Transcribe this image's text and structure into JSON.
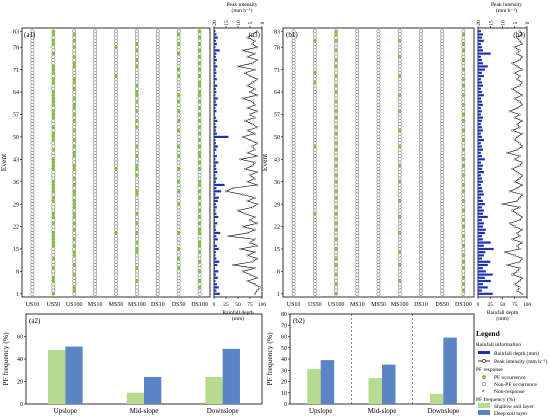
{
  "colors": {
    "pf_occurrence": "#8bc34a",
    "shallow": "#b7dc90",
    "deep": "#5b84c4",
    "rainfall": "#1c2fb5",
    "frame": "#000000",
    "circle": "#555555"
  },
  "chart_data": [
    {
      "type": "scatter",
      "panel": "(a1)",
      "ylabel": "Event",
      "categories": [
        "US10",
        "US50",
        "US100",
        "MS10",
        "MS50",
        "MS100",
        "DS10",
        "DS50",
        "DS100"
      ],
      "yticks": [
        1,
        8,
        15,
        22,
        29,
        36,
        43,
        50,
        57,
        64,
        71,
        78,
        83
      ],
      "ylim": [
        0,
        84
      ],
      "occurrence_events": [
        [],
        [
          1,
          5,
          6,
          9,
          12,
          16,
          17,
          18,
          19,
          20,
          23,
          25,
          26,
          30,
          31,
          33,
          34,
          35,
          36,
          40,
          41,
          42,
          43,
          46,
          49,
          50,
          51,
          53,
          56,
          57,
          58,
          60,
          61,
          62,
          63,
          64,
          67,
          68,
          70,
          71,
          72,
          76,
          79,
          80,
          82,
          83
        ],
        [
          2,
          3,
          7,
          10,
          13,
          14,
          16,
          18,
          21,
          23,
          25,
          26,
          28,
          29,
          30,
          32,
          33,
          35,
          37,
          40,
          41,
          44,
          45,
          47,
          49,
          52,
          55,
          57,
          59,
          60,
          62,
          65,
          67,
          68,
          72,
          73,
          75,
          78,
          80,
          82
        ],
        [],
        [
          20,
          40,
          69,
          78
        ],
        [
          5,
          9,
          14,
          15,
          17,
          20,
          23,
          26,
          32,
          33,
          38,
          40,
          41,
          44,
          47,
          53,
          55,
          58,
          61,
          63,
          64,
          66,
          72,
          74,
          77,
          79
        ],
        [],
        [
          9,
          12,
          15,
          20,
          29,
          33,
          36,
          40,
          44,
          47,
          52,
          55,
          58,
          61,
          63,
          69,
          71,
          76,
          79,
          82
        ],
        [
          3,
          5,
          8,
          11,
          14,
          16,
          17,
          20,
          21,
          23,
          25,
          27,
          29,
          31,
          33,
          35,
          36,
          40,
          42,
          44,
          45,
          47,
          49,
          51,
          53,
          55,
          57,
          59,
          61,
          63,
          64,
          66,
          67,
          69,
          71,
          73,
          75,
          77,
          79,
          81,
          83
        ]
      ]
    },
    {
      "type": "scatter",
      "panel": "(b1)",
      "ylabel": "Event",
      "categories": [
        "US10",
        "US50",
        "US100",
        "MS10",
        "MS50",
        "MS100",
        "DS10",
        "DS50",
        "DS100"
      ],
      "yticks": [
        1,
        8,
        15,
        22,
        29,
        36,
        43,
        50,
        57,
        64,
        71,
        78,
        83
      ],
      "ylim": [
        0,
        84
      ],
      "occurrence_events": [
        [],
        [
          26,
          47,
          67,
          70,
          80
        ],
        [
          1,
          4,
          7,
          10,
          12,
          15,
          18,
          21,
          23,
          26,
          28,
          31,
          33,
          36,
          38,
          41,
          43,
          46,
          48,
          51,
          53,
          56,
          58,
          61,
          64,
          66,
          69,
          72,
          74,
          77,
          80,
          82,
          83
        ],
        [],
        [],
        [
          5,
          10,
          14,
          20,
          25,
          30,
          36,
          41,
          47,
          52,
          58,
          63,
          69,
          75,
          80
        ],
        [],
        [],
        [
          2,
          4,
          6,
          9,
          11,
          13,
          16,
          19,
          22,
          24,
          27,
          30,
          33,
          35,
          38,
          41,
          43,
          46,
          49,
          52,
          55,
          57,
          60,
          63,
          66,
          68,
          71,
          74,
          77,
          79,
          82
        ]
      ]
    },
    {
      "type": "bar+line",
      "panel": "(a3)",
      "xlabel": "Rainfall depth\n(mm)",
      "x2label": "Peak intensity\n(mm h⁻¹)",
      "xticks": [
        0,
        25,
        50,
        75,
        100
      ],
      "x2ticks": [
        20,
        15,
        10,
        5,
        0
      ],
      "xlim": [
        0,
        100
      ],
      "x2lim": [
        20,
        0
      ],
      "rainfall_depth": [
        12,
        5,
        10,
        6,
        3,
        8,
        4,
        9,
        2,
        7,
        11,
        5,
        3,
        4,
        10,
        6,
        2,
        8,
        5,
        13,
        4,
        3,
        7,
        2,
        9,
        5,
        3,
        6,
        4,
        8,
        10,
        3,
        15,
        5,
        22,
        4,
        6,
        3,
        7,
        5,
        4,
        9,
        3,
        6,
        2,
        5,
        8,
        4,
        3,
        30,
        6,
        4,
        5,
        3,
        7,
        4,
        2,
        5,
        3,
        6,
        4,
        8,
        3,
        5,
        4,
        7,
        2,
        6,
        3,
        5,
        4,
        7,
        3,
        6,
        4,
        5,
        12,
        3,
        6,
        4,
        8,
        5,
        3
      ],
      "peak_intensity": [
        3,
        2,
        1,
        3,
        6,
        2,
        5,
        8,
        3,
        12,
        4,
        2,
        6,
        3,
        9,
        2,
        5,
        3,
        14,
        6,
        3,
        8,
        2,
        5,
        3,
        7,
        10,
        4,
        2,
        6,
        3,
        8,
        15,
        12,
        2,
        6,
        3,
        5,
        2,
        7,
        4,
        3,
        9,
        2,
        6,
        3,
        4,
        2,
        5,
        8,
        3,
        6,
        2,
        4,
        7,
        3,
        5,
        2,
        6,
        3,
        4,
        8,
        2,
        5,
        3,
        6,
        4,
        2,
        5,
        7,
        3,
        10,
        4,
        2,
        6,
        3,
        8,
        2,
        4,
        3,
        6,
        4,
        2
      ]
    },
    {
      "type": "bar+line",
      "panel": "(b3)",
      "xlabel": "Rainfall depth\n(mm)",
      "x2label": "Peak intensity\n(mm h⁻¹)",
      "xticks": [
        0,
        25,
        50,
        75,
        100
      ],
      "x2ticks": [
        20,
        15,
        10,
        5,
        0
      ],
      "xlim": [
        0,
        100
      ],
      "x2lim": [
        20,
        0
      ],
      "rainfall_depth": [
        30,
        8,
        20,
        10,
        26,
        14,
        30,
        16,
        10,
        20,
        25,
        8,
        12,
        15,
        32,
        12,
        26,
        10,
        8,
        14,
        16,
        10,
        12,
        8,
        20,
        10,
        12,
        8,
        14,
        10,
        6,
        12,
        10,
        8,
        6,
        10,
        8,
        6,
        12,
        8,
        10,
        6,
        14,
        8,
        6,
        10,
        8,
        6,
        12,
        8,
        6,
        10,
        8,
        6,
        8,
        10,
        6,
        8,
        6,
        10,
        8,
        6,
        12,
        8,
        6,
        10,
        8,
        6,
        12,
        8,
        14,
        20,
        10,
        8,
        6,
        26,
        10,
        8,
        6,
        12,
        8,
        10,
        6
      ],
      "peak_intensity": [
        2,
        4,
        3,
        5,
        3,
        2,
        6,
        4,
        3,
        8,
        3,
        2,
        5,
        9,
        3,
        4,
        2,
        6,
        3,
        4,
        2,
        5,
        7,
        3,
        2,
        4,
        6,
        3,
        10,
        4,
        3,
        2,
        7,
        4,
        2,
        5,
        3,
        2,
        4,
        6,
        3,
        2,
        5,
        3,
        8,
        4,
        2,
        3,
        5,
        4,
        2,
        6,
        3,
        4,
        2,
        5,
        3,
        7,
        4,
        2,
        3,
        5,
        2,
        4,
        6,
        3,
        2,
        4,
        3,
        5,
        2,
        4,
        6,
        3,
        2,
        4,
        3,
        5,
        2,
        3,
        4,
        2,
        3
      ]
    },
    {
      "type": "bar",
      "panel": "(a2)",
      "ylabel": "PF frequency (%)",
      "categories": [
        "Upslope",
        "Mid-slope",
        "Downslope"
      ],
      "ylim": [
        0,
        80
      ],
      "yticks": [
        0,
        20,
        40,
        60
      ],
      "series": [
        {
          "name": "Shallow soil layer",
          "values": [
            48,
            10,
            24
          ]
        },
        {
          "name": "Deep soil layer",
          "values": [
            51,
            24,
            49
          ]
        }
      ]
    },
    {
      "type": "bar",
      "panel": "(b2)",
      "ylabel": "PF frequency (%)",
      "categories": [
        "Upslope",
        "Mid-slope",
        "Downslope"
      ],
      "ylim": [
        0,
        80
      ],
      "yticks": [
        0,
        10,
        20,
        30,
        40,
        50,
        60,
        70,
        80
      ],
      "series": [
        {
          "name": "Shallow soil layer",
          "values": [
            31,
            23,
            9
          ]
        },
        {
          "name": "Deep soil layer",
          "values": [
            39,
            35,
            59
          ]
        }
      ]
    }
  ],
  "legend": {
    "title": "Legend",
    "rainfall_header": "Rainfall information",
    "rainfall_depth": "Rainfall depth (mm)",
    "peak_intensity": "Peak intensity (mm h⁻¹)",
    "pf_response_header": "PF response",
    "pf_occurrence": "PF occurrence",
    "non_pf_occurrence": "Non-PF occurrence",
    "non_response": "Non-response",
    "pf_frequency_header": "PF frequency (%)",
    "shallow": "Shallow soil layer",
    "deep": "Deep soil layer"
  }
}
